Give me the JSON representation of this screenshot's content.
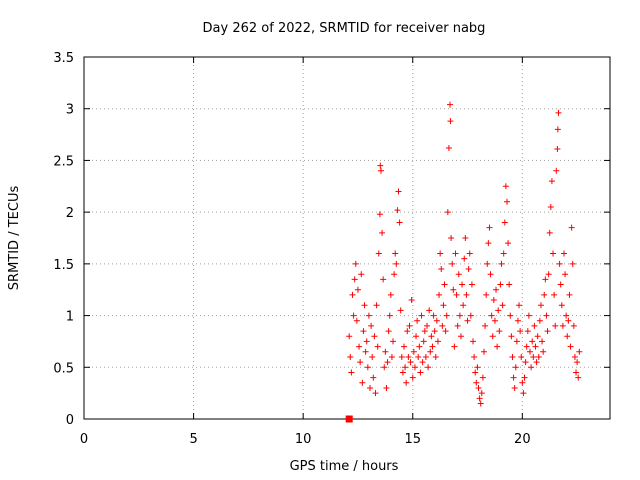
{
  "chart_data": {
    "type": "scatter",
    "title": "Day 262 of 2022, SRMTID for receiver nabg",
    "xlabel": "GPS time / hours",
    "ylabel": "SRMTID / TECUs",
    "xlim": [
      0,
      24
    ],
    "ylim": [
      0,
      3.5
    ],
    "xticks": [
      0,
      5,
      10,
      15,
      20
    ],
    "yticks": [
      0,
      0.5,
      1,
      1.5,
      2,
      2.5,
      3,
      3.5
    ],
    "ytick_labels": [
      "0",
      "0.5",
      "1",
      "1.5",
      "2",
      "2.5",
      "3",
      "3.5"
    ],
    "grid": true,
    "marker_color": "#ff0000",
    "series": [
      {
        "marker": "plus",
        "points": [
          [
            12.1,
            0.8
          ],
          [
            12.15,
            0.6
          ],
          [
            12.2,
            0.45
          ],
          [
            12.25,
            1.2
          ],
          [
            12.3,
            1.0
          ],
          [
            12.35,
            1.35
          ],
          [
            12.4,
            1.5
          ],
          [
            12.45,
            0.95
          ],
          [
            12.5,
            1.25
          ],
          [
            12.55,
            0.7
          ],
          [
            12.6,
            0.55
          ],
          [
            12.65,
            1.4
          ],
          [
            12.7,
            0.35
          ],
          [
            12.75,
            0.85
          ],
          [
            12.8,
            1.1
          ],
          [
            12.85,
            0.65
          ],
          [
            12.9,
            0.75
          ],
          [
            12.95,
            0.5
          ],
          [
            13.0,
            1.0
          ],
          [
            13.05,
            0.3
          ],
          [
            13.1,
            0.9
          ],
          [
            13.15,
            0.6
          ],
          [
            13.2,
            0.4
          ],
          [
            13.25,
            0.8
          ],
          [
            13.3,
            0.25
          ],
          [
            13.35,
            1.1
          ],
          [
            13.4,
            0.7
          ],
          [
            13.45,
            1.6
          ],
          [
            13.5,
            1.98
          ],
          [
            13.52,
            2.45
          ],
          [
            13.55,
            2.4
          ],
          [
            13.6,
            1.8
          ],
          [
            13.65,
            1.35
          ],
          [
            13.7,
            0.5
          ],
          [
            13.75,
            0.65
          ],
          [
            13.8,
            0.3
          ],
          [
            13.85,
            0.55
          ],
          [
            13.9,
            0.85
          ],
          [
            13.95,
            1.0
          ],
          [
            14.0,
            1.2
          ],
          [
            14.05,
            0.6
          ],
          [
            14.1,
            0.75
          ],
          [
            14.15,
            1.4
          ],
          [
            14.2,
            1.6
          ],
          [
            14.25,
            1.5
          ],
          [
            14.3,
            2.02
          ],
          [
            14.35,
            2.2
          ],
          [
            14.4,
            1.9
          ],
          [
            14.45,
            1.05
          ],
          [
            14.5,
            0.6
          ],
          [
            14.55,
            0.45
          ],
          [
            14.6,
            0.7
          ],
          [
            14.65,
            0.5
          ],
          [
            14.7,
            0.35
          ],
          [
            14.75,
            0.85
          ],
          [
            14.8,
            0.6
          ],
          [
            14.85,
            0.9
          ],
          [
            14.9,
            0.55
          ],
          [
            14.95,
            1.15
          ],
          [
            15.0,
            0.4
          ],
          [
            15.05,
            0.65
          ],
          [
            15.1,
            0.5
          ],
          [
            15.15,
            0.8
          ],
          [
            15.2,
            0.95
          ],
          [
            15.25,
            0.6
          ],
          [
            15.3,
            0.7
          ],
          [
            15.35,
            0.45
          ],
          [
            15.4,
            1.0
          ],
          [
            15.45,
            0.55
          ],
          [
            15.5,
            0.75
          ],
          [
            15.55,
            0.85
          ],
          [
            15.6,
            0.6
          ],
          [
            15.65,
            0.9
          ],
          [
            15.7,
            0.5
          ],
          [
            15.75,
            1.05
          ],
          [
            15.8,
            0.65
          ],
          [
            15.85,
            0.8
          ],
          [
            15.9,
            0.7
          ],
          [
            15.95,
            1.0
          ],
          [
            16.0,
            0.85
          ],
          [
            16.05,
            0.6
          ],
          [
            16.1,
            0.95
          ],
          [
            16.15,
            0.75
          ],
          [
            16.2,
            1.2
          ],
          [
            16.25,
            1.6
          ],
          [
            16.3,
            1.45
          ],
          [
            16.35,
            0.9
          ],
          [
            16.4,
            1.1
          ],
          [
            16.45,
            1.3
          ],
          [
            16.5,
            0.85
          ],
          [
            16.55,
            1.0
          ],
          [
            16.6,
            2.0
          ],
          [
            16.65,
            2.62
          ],
          [
            16.7,
            3.04
          ],
          [
            16.72,
            2.88
          ],
          [
            16.75,
            1.75
          ],
          [
            16.8,
            1.5
          ],
          [
            16.85,
            1.25
          ],
          [
            16.9,
            0.7
          ],
          [
            16.95,
            1.6
          ],
          [
            17.0,
            1.2
          ],
          [
            17.05,
            0.9
          ],
          [
            17.1,
            1.4
          ],
          [
            17.15,
            1.0
          ],
          [
            17.2,
            0.8
          ],
          [
            17.25,
            1.3
          ],
          [
            17.3,
            1.1
          ],
          [
            17.35,
            1.55
          ],
          [
            17.4,
            1.75
          ],
          [
            17.45,
            1.2
          ],
          [
            17.5,
            0.95
          ],
          [
            17.55,
            1.45
          ],
          [
            17.6,
            1.6
          ],
          [
            17.65,
            1.0
          ],
          [
            17.7,
            1.3
          ],
          [
            17.75,
            0.75
          ],
          [
            17.8,
            0.6
          ],
          [
            17.85,
            0.45
          ],
          [
            17.9,
            0.35
          ],
          [
            17.95,
            0.5
          ],
          [
            18.0,
            0.3
          ],
          [
            18.05,
            0.2
          ],
          [
            18.1,
            0.15
          ],
          [
            18.15,
            0.25
          ],
          [
            18.2,
            0.4
          ],
          [
            18.25,
            0.65
          ],
          [
            18.3,
            0.9
          ],
          [
            18.35,
            1.2
          ],
          [
            18.4,
            1.5
          ],
          [
            18.45,
            1.7
          ],
          [
            18.5,
            1.85
          ],
          [
            18.55,
            1.4
          ],
          [
            18.6,
            1.0
          ],
          [
            18.65,
            0.8
          ],
          [
            18.7,
            1.15
          ],
          [
            18.75,
            0.95
          ],
          [
            18.8,
            1.25
          ],
          [
            18.85,
            0.7
          ],
          [
            18.9,
            1.05
          ],
          [
            18.95,
            0.85
          ],
          [
            19.0,
            1.3
          ],
          [
            19.05,
            1.5
          ],
          [
            19.1,
            1.1
          ],
          [
            19.15,
            1.6
          ],
          [
            19.2,
            1.9
          ],
          [
            19.25,
            2.25
          ],
          [
            19.3,
            2.1
          ],
          [
            19.35,
            1.7
          ],
          [
            19.4,
            1.3
          ],
          [
            19.45,
            1.0
          ],
          [
            19.5,
            0.8
          ],
          [
            19.55,
            0.6
          ],
          [
            19.6,
            0.4
          ],
          [
            19.65,
            0.3
          ],
          [
            19.7,
            0.5
          ],
          [
            19.75,
            0.75
          ],
          [
            19.8,
            0.95
          ],
          [
            19.85,
            1.1
          ],
          [
            19.9,
            0.85
          ],
          [
            19.95,
            0.6
          ],
          [
            20.0,
            0.35
          ],
          [
            20.05,
            0.25
          ],
          [
            20.1,
            0.4
          ],
          [
            20.15,
            0.55
          ],
          [
            20.2,
            0.7
          ],
          [
            20.25,
            0.85
          ],
          [
            20.3,
            1.0
          ],
          [
            20.35,
            0.65
          ],
          [
            20.4,
            0.5
          ],
          [
            20.45,
            0.75
          ],
          [
            20.5,
            0.6
          ],
          [
            20.55,
            0.9
          ],
          [
            20.6,
            0.7
          ],
          [
            20.65,
            0.55
          ],
          [
            20.7,
            0.8
          ],
          [
            20.75,
            0.6
          ],
          [
            20.8,
            0.95
          ],
          [
            20.85,
            1.1
          ],
          [
            20.9,
            0.75
          ],
          [
            20.95,
            0.65
          ],
          [
            21.0,
            1.2
          ],
          [
            21.05,
            1.35
          ],
          [
            21.1,
            1.0
          ],
          [
            21.15,
            0.85
          ],
          [
            21.2,
            1.4
          ],
          [
            21.25,
            1.8
          ],
          [
            21.3,
            2.05
          ],
          [
            21.35,
            2.3
          ],
          [
            21.4,
            1.6
          ],
          [
            21.45,
            1.2
          ],
          [
            21.5,
            0.9
          ],
          [
            21.55,
            2.4
          ],
          [
            21.6,
            2.61
          ],
          [
            21.62,
            2.8
          ],
          [
            21.65,
            2.96
          ],
          [
            21.7,
            1.5
          ],
          [
            21.75,
            1.3
          ],
          [
            21.8,
            1.1
          ],
          [
            21.85,
            0.9
          ],
          [
            21.9,
            1.6
          ],
          [
            21.95,
            1.4
          ],
          [
            22.0,
            1.0
          ],
          [
            22.05,
            0.8
          ],
          [
            22.1,
            0.95
          ],
          [
            22.15,
            1.2
          ],
          [
            22.2,
            0.7
          ],
          [
            22.25,
            1.85
          ],
          [
            22.3,
            1.5
          ],
          [
            22.35,
            0.9
          ],
          [
            22.4,
            0.6
          ],
          [
            22.45,
            0.45
          ],
          [
            22.5,
            0.55
          ],
          [
            22.55,
            0.4
          ],
          [
            22.6,
            0.65
          ]
        ]
      },
      {
        "marker": "square",
        "points": [
          [
            12.1,
            0.0
          ]
        ]
      }
    ]
  }
}
